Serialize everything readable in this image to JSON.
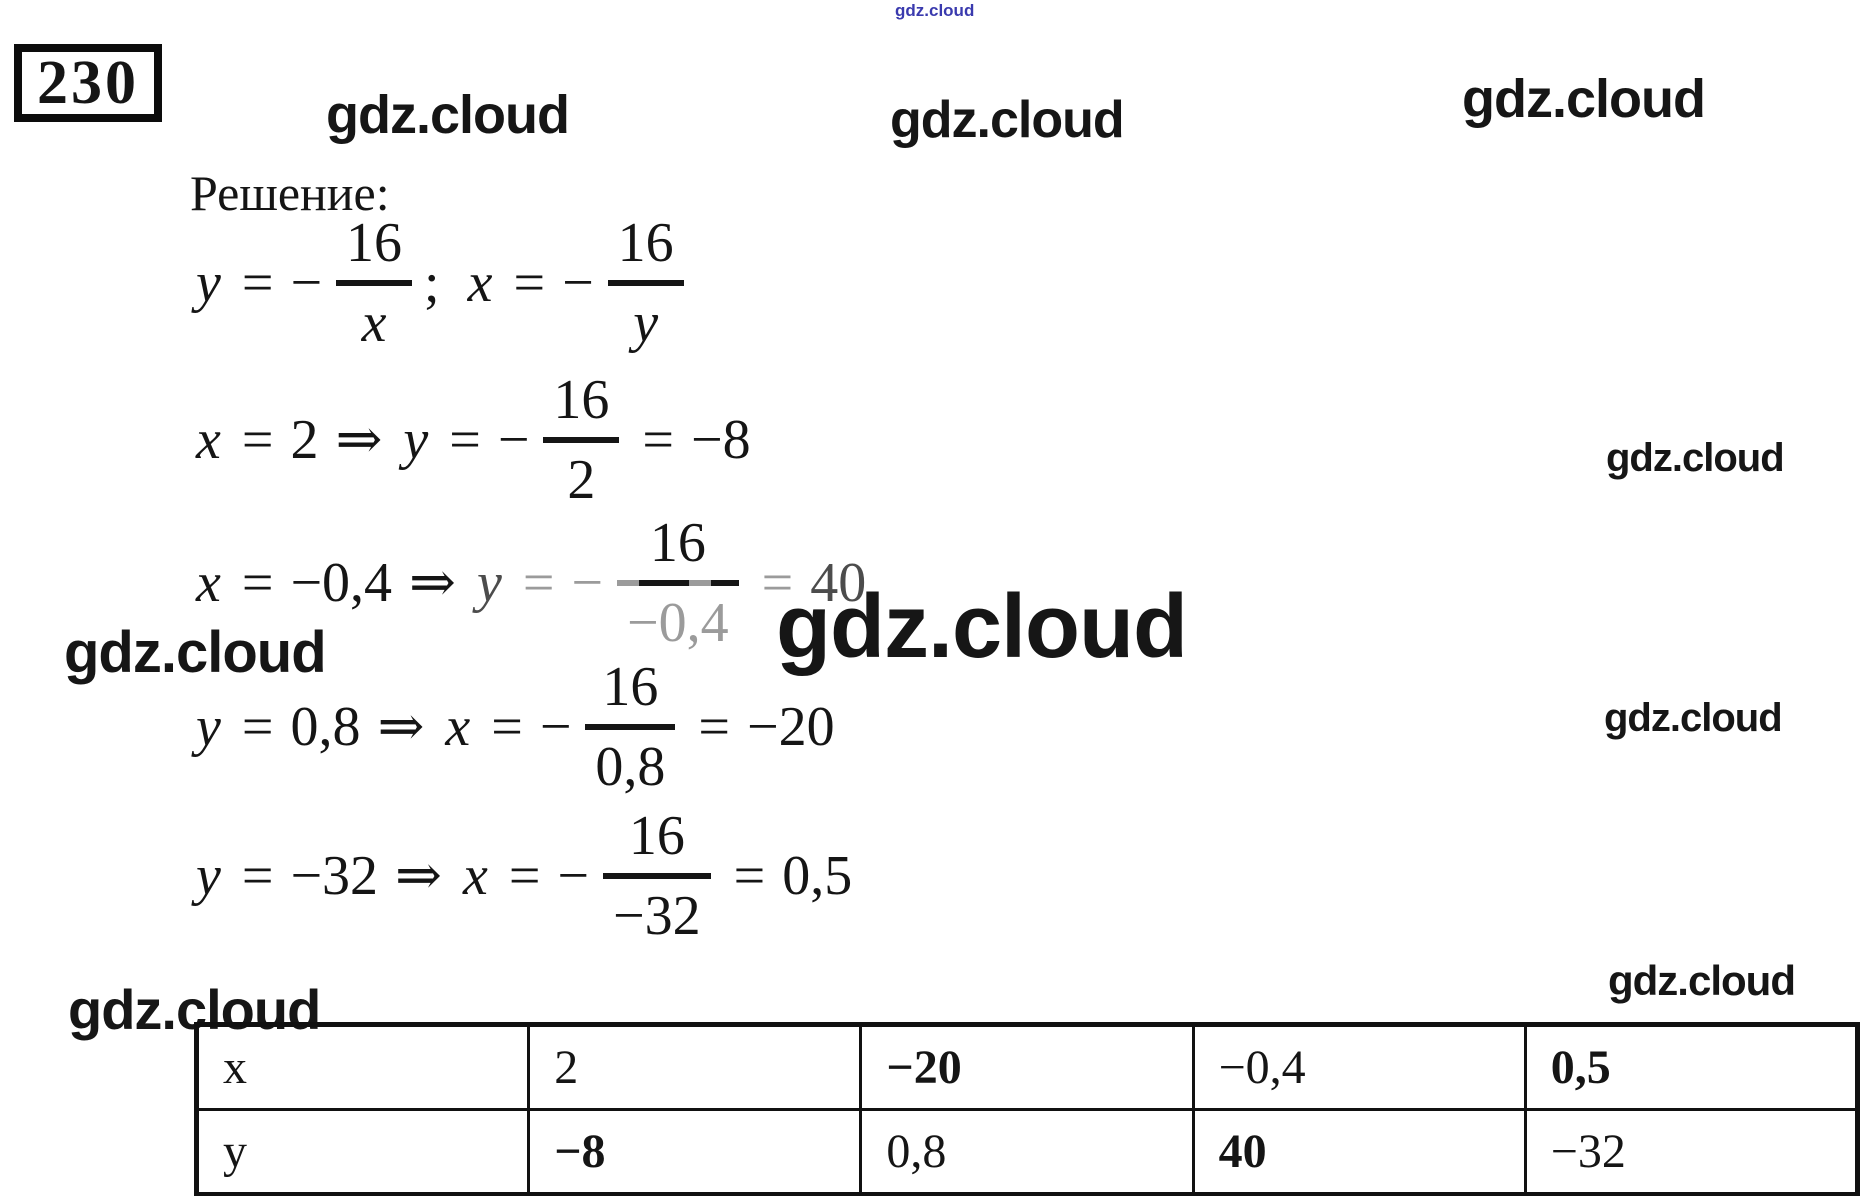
{
  "problem": {
    "number": "230"
  },
  "watermarks": {
    "text": "gdz.cloud",
    "color": "#161616",
    "blue_color": "#3a3aae"
  },
  "solution": {
    "heading": "Решение:",
    "equations": [
      {
        "tokens": [
          {
            "k": "v",
            "t": "y"
          },
          {
            "k": "o",
            "t": "="
          },
          {
            "k": "m",
            "t": "−"
          },
          {
            "k": "f",
            "num": "16",
            "den": "x",
            "den_var": true
          },
          {
            "k": "p",
            "t": ";"
          },
          {
            "k": "v",
            "t": "x"
          },
          {
            "k": "o",
            "t": "="
          },
          {
            "k": "m",
            "t": "−"
          },
          {
            "k": "f",
            "num": "16",
            "den": "y",
            "den_var": true
          }
        ]
      },
      {
        "tokens": [
          {
            "k": "v",
            "t": "x"
          },
          {
            "k": "o",
            "t": "="
          },
          {
            "k": "n",
            "t": "2"
          },
          {
            "k": "o",
            "t": "⇒"
          },
          {
            "k": "v",
            "t": "y"
          },
          {
            "k": "o",
            "t": "="
          },
          {
            "k": "m",
            "t": "−"
          },
          {
            "k": "f",
            "num": "16",
            "den": "2"
          },
          {
            "k": "o",
            "t": "="
          },
          {
            "k": "n",
            "t": "−8"
          }
        ]
      },
      {
        "tokens": [
          {
            "k": "v",
            "t": "x"
          },
          {
            "k": "o",
            "t": "="
          },
          {
            "k": "n",
            "t": "−0,4"
          },
          {
            "k": "o",
            "t": "⇒"
          },
          {
            "k": "v",
            "t": "y",
            "tone": "dark"
          },
          {
            "k": "o",
            "t": "=",
            "tone": "faded"
          },
          {
            "k": "m",
            "t": "−",
            "tone": "faded"
          },
          {
            "k": "f",
            "num": "16",
            "den": "−0,4",
            "den_tone": "faded",
            "bar": "dashed"
          },
          {
            "k": "o",
            "t": "=",
            "tone": "faded"
          },
          {
            "k": "n",
            "t": "40",
            "tone": "dark"
          }
        ]
      },
      {
        "tokens": [
          {
            "k": "v",
            "t": "y"
          },
          {
            "k": "o",
            "t": "="
          },
          {
            "k": "n",
            "t": "0,8"
          },
          {
            "k": "o",
            "t": "⇒"
          },
          {
            "k": "v",
            "t": "x"
          },
          {
            "k": "o",
            "t": "="
          },
          {
            "k": "m",
            "t": "−"
          },
          {
            "k": "f",
            "num": "16",
            "den": "0,8"
          },
          {
            "k": "o",
            "t": "="
          },
          {
            "k": "n",
            "t": "−20"
          }
        ]
      },
      {
        "tokens": [
          {
            "k": "v",
            "t": "y"
          },
          {
            "k": "o",
            "t": "="
          },
          {
            "k": "n",
            "t": "−32"
          },
          {
            "k": "o",
            "t": "⇒"
          },
          {
            "k": "v",
            "t": "x"
          },
          {
            "k": "o",
            "t": "="
          },
          {
            "k": "m",
            "t": "−"
          },
          {
            "k": "f",
            "num": "16",
            "den": "−32"
          },
          {
            "k": "o",
            "t": "="
          },
          {
            "k": "n",
            "t": "0,5"
          }
        ]
      }
    ]
  },
  "table": {
    "rows": [
      {
        "cells": [
          {
            "t": "x",
            "b": false
          },
          {
            "t": "2",
            "b": false
          },
          {
            "t": "−20",
            "b": true
          },
          {
            "t": "−0,4",
            "b": false
          },
          {
            "t": "0,5",
            "b": true
          }
        ]
      },
      {
        "cells": [
          {
            "t": "y",
            "b": false
          },
          {
            "t": "−8",
            "b": true
          },
          {
            "t": "0,8",
            "b": false
          },
          {
            "t": "40",
            "b": true
          },
          {
            "t": "−32",
            "b": false
          }
        ]
      }
    ]
  }
}
